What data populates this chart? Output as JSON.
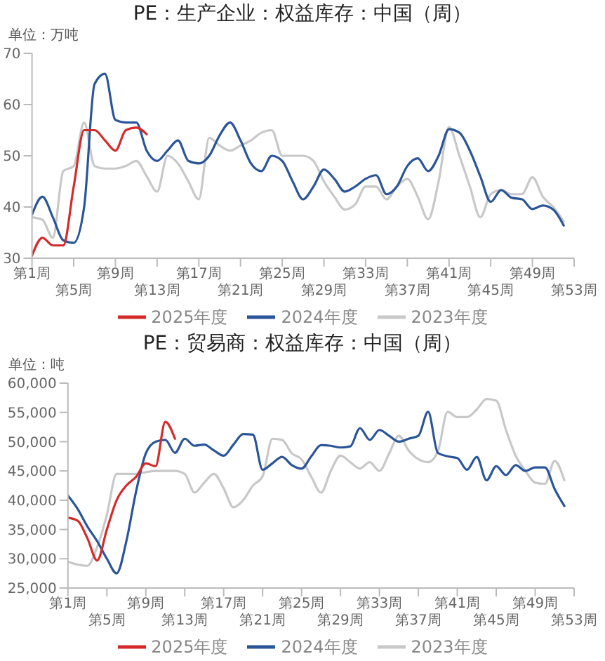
{
  "chart_data": [
    {
      "type": "line",
      "title": "PE：生产企业：权益库存：中国（周）",
      "ylabel": "单位：万吨",
      "categories": [
        "第1周",
        null,
        null,
        null,
        "第5周",
        null,
        null,
        null,
        "第9周",
        null,
        null,
        null,
        "第13周",
        null,
        null,
        null,
        "第17周",
        null,
        null,
        null,
        "第21周",
        null,
        null,
        null,
        "第25周",
        null,
        null,
        null,
        "第29周",
        null,
        null,
        null,
        "第33周",
        null,
        null,
        null,
        "第37周",
        null,
        null,
        null,
        "第41周",
        null,
        null,
        null,
        "第45周",
        null,
        null,
        null,
        "第49周",
        null,
        null,
        null,
        "第53周"
      ],
      "ylim": [
        30,
        70
      ],
      "yticks": [
        30,
        40,
        50,
        60,
        70
      ],
      "legend": "bottom",
      "marker": "none",
      "line_style": "solid",
      "series": [
        {
          "name": "2025年度",
          "color": "#d42a2a",
          "values": [
            30.5,
            34,
            32.5,
            32.5,
            44,
            55,
            55,
            53,
            51,
            55,
            55.5,
            54.2,
            null,
            null,
            null,
            null,
            null,
            null,
            null,
            null,
            null,
            null,
            null,
            null,
            null,
            null,
            null,
            null,
            null,
            null,
            null,
            null,
            null,
            null,
            null,
            null,
            null,
            null,
            null,
            null,
            null,
            null,
            null,
            null,
            null,
            null,
            null,
            null,
            null,
            null,
            null,
            null,
            null
          ]
        },
        {
          "name": "2024年度",
          "color": "#2a5599",
          "values": [
            38.5,
            42,
            38,
            33.5,
            33,
            40,
            64,
            66,
            57,
            56.5,
            56.5,
            51,
            49,
            51,
            53,
            49,
            48.5,
            50,
            54,
            56.5,
            53,
            48.5,
            47,
            50,
            49,
            45,
            41.5,
            44,
            47.3,
            45.5,
            43,
            44,
            45.5,
            46.2,
            42.5,
            44,
            48,
            49.5,
            47,
            50,
            55.2,
            54.5,
            51,
            46,
            41,
            43.3,
            41.8,
            41.5,
            39.6,
            40.3,
            39.5,
            36.4,
            null
          ]
        },
        {
          "name": "2023年度",
          "color": "#c8c8c8",
          "values": [
            38,
            37.5,
            34,
            47,
            48,
            56.5,
            48,
            47.5,
            47.5,
            48,
            49,
            46,
            43,
            50,
            48.5,
            45,
            41.5,
            53.5,
            52,
            51,
            52,
            53,
            54.5,
            55,
            50,
            50,
            50,
            49,
            45,
            42,
            39.5,
            40.5,
            44,
            44,
            41.5,
            44,
            45.5,
            42,
            37.6,
            45,
            55.6,
            50,
            44,
            38,
            42.5,
            43.3,
            42.5,
            42.5,
            45.8,
            42,
            40,
            37.2,
            null
          ]
        }
      ]
    },
    {
      "type": "line",
      "title": "PE：贸易商：权益库存：中国（周）",
      "ylabel": "单位：吨",
      "categories": [
        "第1周",
        null,
        null,
        null,
        "第5周",
        null,
        null,
        null,
        "第9周",
        null,
        null,
        null,
        "第13周",
        null,
        null,
        null,
        "第17周",
        null,
        null,
        null,
        "第21周",
        null,
        null,
        null,
        "第25周",
        null,
        null,
        null,
        "第29周",
        null,
        null,
        null,
        "第33周",
        null,
        null,
        null,
        "第37周",
        null,
        null,
        null,
        "第41周",
        null,
        null,
        null,
        "第45周",
        null,
        null,
        null,
        "第49周",
        null,
        null,
        null,
        "第53周"
      ],
      "ylim": [
        25000,
        60000
      ],
      "yticks": [
        {
          "value": 25000,
          "label": "25,000"
        },
        {
          "value": 30000,
          "label": "30,000"
        },
        {
          "value": 35000,
          "label": "35,000"
        },
        {
          "value": 40000,
          "label": "40,000"
        },
        {
          "value": 45000,
          "label": "45,000"
        },
        {
          "value": 50000,
          "label": "50,000"
        },
        {
          "value": 55000,
          "label": "55,000"
        },
        {
          "value": 60000,
          "label": "60,000"
        }
      ],
      "legend": "bottom",
      "marker": "none",
      "line_style": "solid",
      "series": [
        {
          "name": "2025年度",
          "color": "#d42a2a",
          "values": [
            37000,
            36500,
            33500,
            29700,
            35000,
            40000,
            42500,
            44000,
            46300,
            45800,
            53400,
            50500,
            null,
            null,
            null,
            null,
            null,
            null,
            null,
            null,
            null,
            null,
            null,
            null,
            null,
            null,
            null,
            null,
            null,
            null,
            null,
            null,
            null,
            null,
            null,
            null,
            null,
            null,
            null,
            null,
            null,
            null,
            null,
            null,
            null,
            null,
            null,
            null,
            null,
            null,
            null,
            null,
            null
          ]
        },
        {
          "name": "2024年度",
          "color": "#2a5599",
          "values": [
            40800,
            38500,
            35500,
            33000,
            30000,
            27500,
            33000,
            41500,
            48000,
            50000,
            50300,
            48100,
            50500,
            49300,
            49500,
            48500,
            47600,
            49500,
            51300,
            51200,
            45200,
            46300,
            47400,
            46000,
            45400,
            47500,
            49400,
            49300,
            49000,
            49200,
            52300,
            50300,
            52000,
            51000,
            50000,
            50500,
            51000,
            55100,
            48100,
            47500,
            47200,
            45200,
            47400,
            43400,
            45800,
            44300,
            46000,
            45000,
            45600,
            45600,
            41900,
            39000,
            null
          ]
        },
        {
          "name": "2023年度",
          "color": "#c8c8c8",
          "values": [
            29500,
            29000,
            28800,
            32000,
            37500,
            44500,
            44500,
            44500,
            44800,
            45000,
            45000,
            45000,
            44500,
            41300,
            43000,
            44500,
            42000,
            38800,
            40000,
            42500,
            44100,
            50500,
            50300,
            48000,
            47000,
            44000,
            41300,
            45000,
            47600,
            46500,
            45400,
            46500,
            45000,
            48000,
            51000,
            48500,
            47000,
            46500,
            48300,
            55100,
            54200,
            54200,
            55500,
            57300,
            57000,
            52000,
            47600,
            45000,
            43000,
            42800,
            46700,
            43400,
            null
          ]
        }
      ]
    }
  ]
}
